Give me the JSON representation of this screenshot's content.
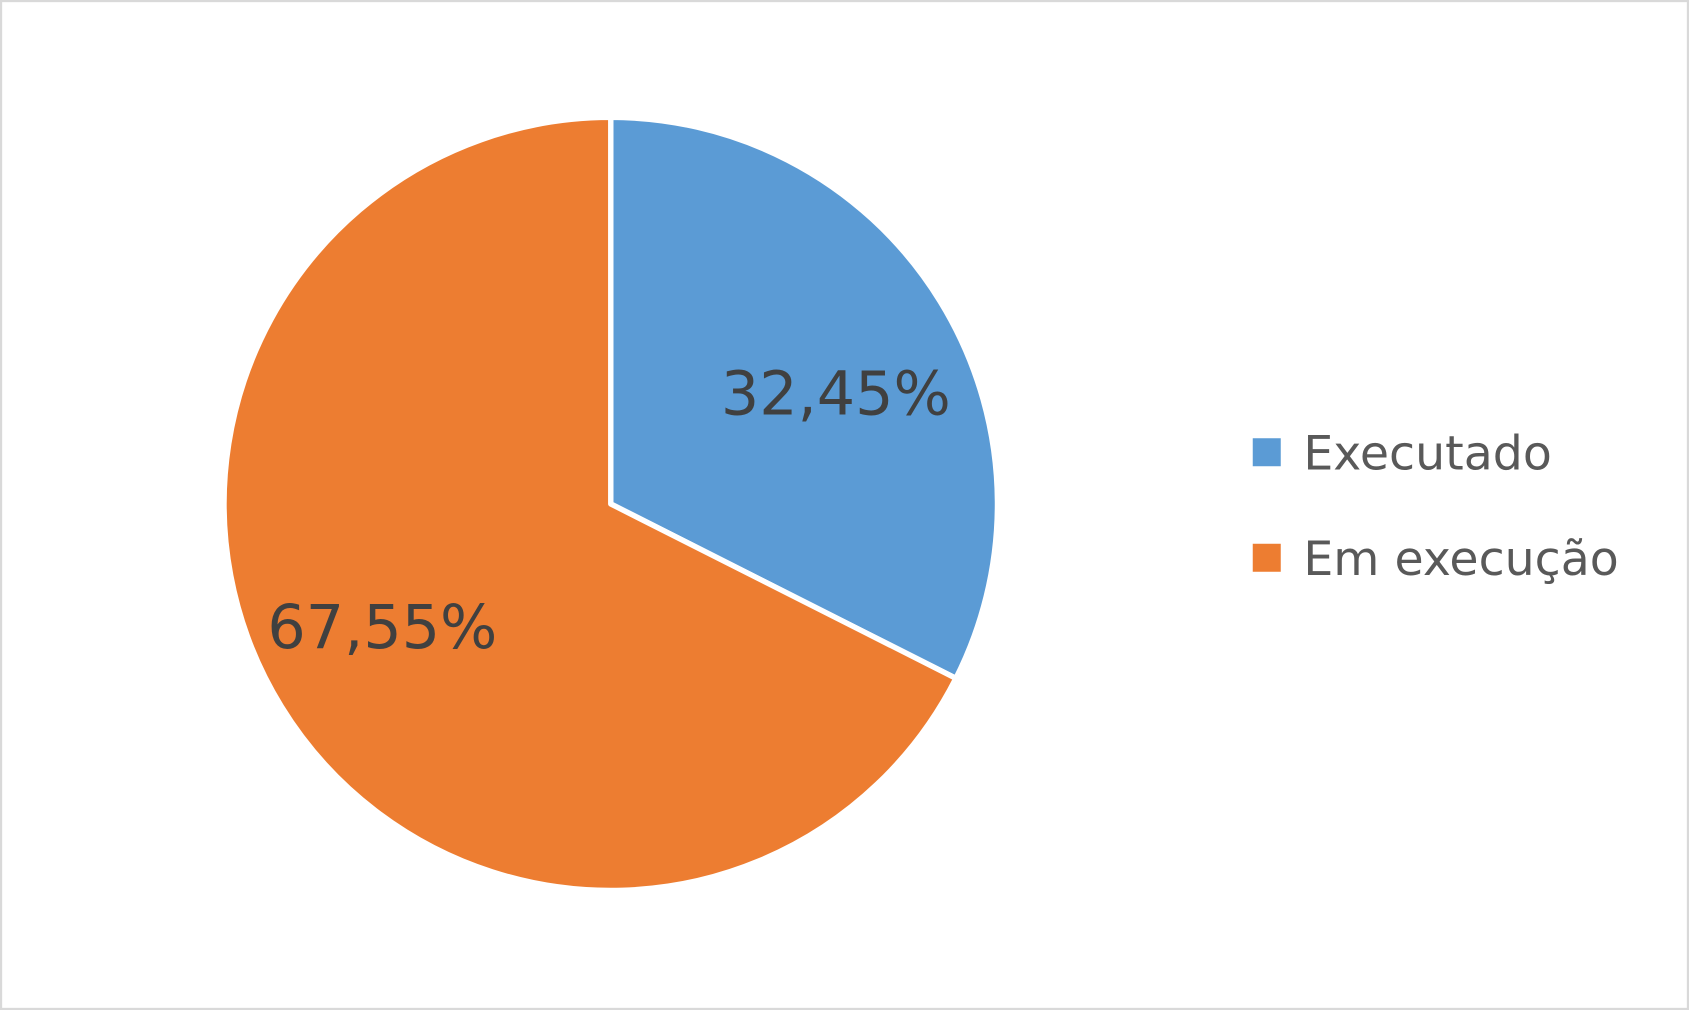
{
  "chart_data": {
    "type": "pie",
    "categories": [
      "Executado",
      "Em execução"
    ],
    "values": [
      32.45,
      67.55
    ],
    "data_labels": [
      "32,45%",
      "67,55%"
    ],
    "colors": [
      "#5B9BD5",
      "#ED7D31"
    ],
    "legend": {
      "placement": "right",
      "entries": [
        "Executado",
        "Em execução"
      ]
    },
    "start_angle": "12 o'clock, clockwise"
  }
}
